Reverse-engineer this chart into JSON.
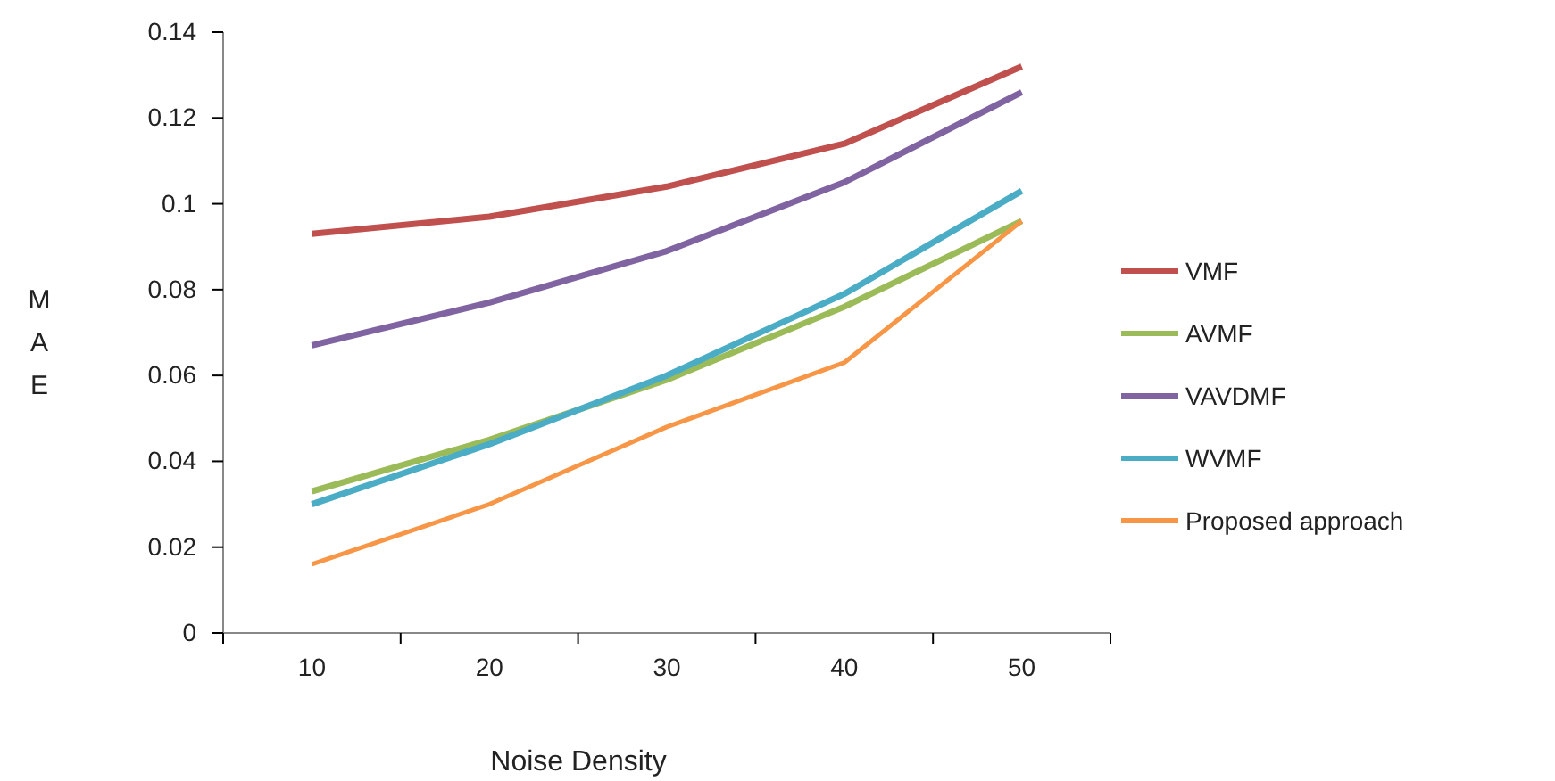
{
  "chart_data": {
    "type": "line",
    "xlabel": "Noise Density",
    "ylabel": "MAE",
    "categories": [
      "10",
      "20",
      "30",
      "40",
      "50"
    ],
    "ylim": [
      0,
      0.14
    ],
    "yticks": [
      0,
      0.02,
      0.04,
      0.06,
      0.08,
      {
        "value": 0.1,
        "label": "0.1"
      },
      0.12,
      0.14
    ],
    "grid": false,
    "legend": "right",
    "marker": "none",
    "series": [
      {
        "name": "VMF",
        "color": "#c0504d",
        "values": [
          0.093,
          0.097,
          0.104,
          0.114,
          0.132
        ]
      },
      {
        "name": "AVMF",
        "color": "#9bbb59",
        "values": [
          0.033,
          0.045,
          0.059,
          0.076,
          0.096
        ]
      },
      {
        "name": "VAVDMF",
        "color": "#8064a2",
        "values": [
          0.067,
          0.077,
          0.089,
          0.105,
          0.126
        ]
      },
      {
        "name": "WVMF",
        "color": "#4bacc6",
        "values": [
          0.03,
          0.044,
          0.06,
          0.079,
          0.103
        ]
      },
      {
        "name": "Proposed approach",
        "color": "#f79646",
        "values": [
          0.016,
          0.03,
          0.048,
          0.063,
          0.096
        ]
      }
    ]
  }
}
